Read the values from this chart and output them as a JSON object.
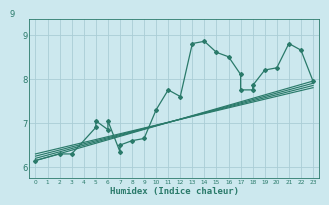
{
  "title": "",
  "xlabel": "Humidex (Indice chaleur)",
  "bg_color": "#cce8ee",
  "grid_color": "#aacdd6",
  "line_color": "#2a7a6a",
  "xlim": [
    -0.5,
    23.5
  ],
  "ylim": [
    5.75,
    9.35
  ],
  "yticks": [
    6,
    7,
    8,
    9
  ],
  "xticks": [
    0,
    1,
    2,
    3,
    4,
    5,
    6,
    7,
    8,
    9,
    10,
    11,
    12,
    13,
    14,
    15,
    16,
    17,
    18,
    19,
    20,
    21,
    22,
    23
  ],
  "series": [
    [
      0,
      6.15
    ],
    [
      2,
      6.3
    ],
    [
      3,
      6.3
    ],
    [
      5,
      6.9
    ],
    [
      5,
      7.05
    ],
    [
      6,
      6.85
    ],
    [
      6,
      7.05
    ],
    [
      7,
      6.35
    ],
    [
      7,
      6.5
    ],
    [
      8,
      6.6
    ],
    [
      9,
      6.65
    ],
    [
      10,
      7.3
    ],
    [
      11,
      7.75
    ],
    [
      12,
      7.6
    ],
    [
      13,
      8.8
    ],
    [
      14,
      8.85
    ],
    [
      15,
      8.6
    ],
    [
      16,
      8.5
    ],
    [
      17,
      8.1
    ],
    [
      17,
      7.75
    ],
    [
      18,
      7.75
    ],
    [
      18,
      7.85
    ],
    [
      19,
      8.2
    ],
    [
      20,
      8.25
    ],
    [
      21,
      8.8
    ],
    [
      22,
      8.65
    ],
    [
      23,
      7.95
    ]
  ],
  "regression_lines": [
    {
      "x_start": 0,
      "y_start": 6.15,
      "x_end": 23,
      "y_end": 7.95
    },
    {
      "x_start": 0,
      "y_start": 6.2,
      "x_end": 23,
      "y_end": 7.9
    },
    {
      "x_start": 0,
      "y_start": 6.25,
      "x_end": 23,
      "y_end": 7.85
    },
    {
      "x_start": 0,
      "y_start": 6.3,
      "x_end": 23,
      "y_end": 7.8
    }
  ]
}
